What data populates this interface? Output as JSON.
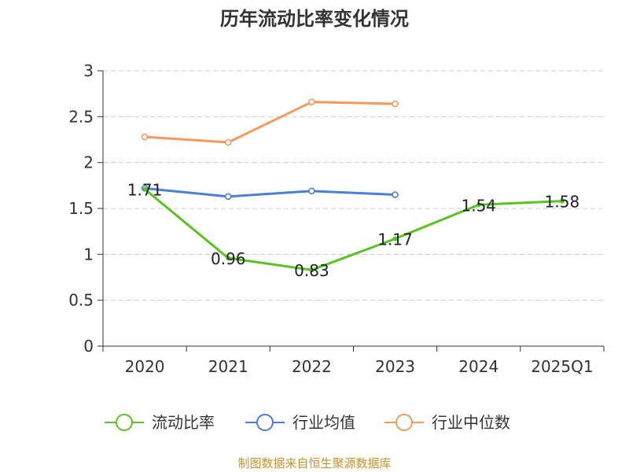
{
  "chart_data": {
    "type": "line",
    "title": "历年流动比率变化情况",
    "categories": [
      "2020",
      "2021",
      "2022",
      "2023",
      "2024",
      "2025Q1"
    ],
    "ylim": [
      0,
      3
    ],
    "yticks": [
      "0",
      "0.5",
      "1",
      "1.5",
      "2",
      "2.5",
      "3"
    ],
    "grid": true,
    "legend_position": "bottom",
    "series": [
      {
        "name": "流动比率",
        "color": "#5ac222",
        "values": [
          1.71,
          0.96,
          0.83,
          1.17,
          1.54,
          1.58
        ],
        "labels": [
          "1.71",
          "0.96",
          "0.83",
          "1.17",
          "1.54",
          "1.58"
        ]
      },
      {
        "name": "行业均值",
        "color": "#4a7fd8",
        "values": [
          1.72,
          1.63,
          1.69,
          1.65,
          null,
          null
        ]
      },
      {
        "name": "行业中位数",
        "color": "#f59a5c",
        "values": [
          2.28,
          2.22,
          2.66,
          2.64,
          null,
          null
        ]
      }
    ],
    "source": "制图数据来自恒生聚源数据库"
  }
}
